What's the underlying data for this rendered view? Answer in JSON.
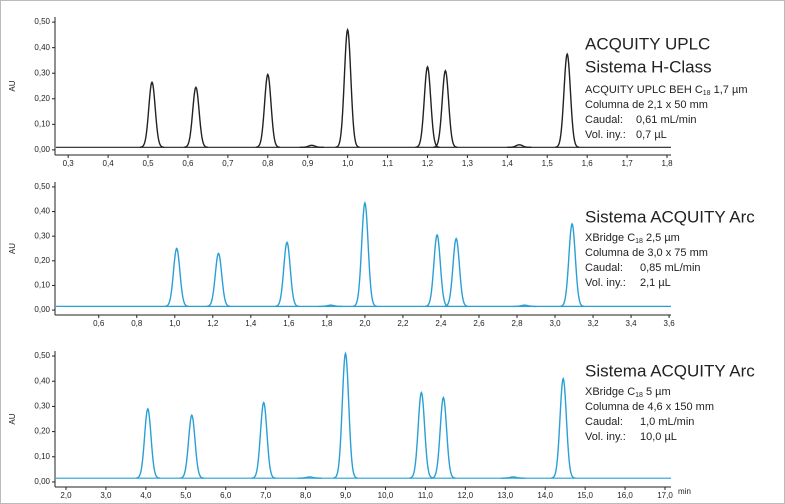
{
  "chart_data": [
    {
      "type": "chromatogram",
      "title": [
        "ACQUITY UPLC",
        "Sistema H-Class"
      ],
      "column": {
        "prefix": "ACQUITY UPLC BEH C",
        "sub": "18",
        "suffix": " 1,7 µm"
      },
      "dimensions": "Columna de 2,1 x 50 mm",
      "flow_label": "Caudal:",
      "flow": "0,61 mL/min",
      "volume_label": "Vol. iny.:",
      "volume": "0,7 µL",
      "y_label": "AU",
      "color": "#222222",
      "x": [
        0.51,
        0.62,
        0.8,
        0.91,
        1.0,
        1.2,
        1.245,
        1.43,
        1.55
      ],
      "values": [
        0.265,
        0.245,
        0.295,
        0.018,
        0.47,
        0.325,
        0.31,
        0.02,
        0.375
      ],
      "baseline": 0.01,
      "xlim": [
        0.267,
        1.81
      ],
      "ylim": [
        -0.02,
        0.52
      ],
      "xticks": [
        {
          "value": 0.3,
          "label": "0,3"
        },
        {
          "value": 0.4,
          "label": "0,4"
        },
        {
          "value": 0.5,
          "label": "0,5"
        },
        {
          "value": 0.6,
          "label": "0,6"
        },
        {
          "value": 0.7,
          "label": "0,7"
        },
        {
          "value": 0.8,
          "label": "0,8"
        },
        {
          "value": 0.9,
          "label": "0,9"
        },
        {
          "value": 1.0,
          "label": "1,0"
        },
        {
          "value": 1.1,
          "label": "1,1"
        },
        {
          "value": 1.2,
          "label": "1,2"
        },
        {
          "value": 1.3,
          "label": "1,3"
        },
        {
          "value": 1.4,
          "label": "1,4"
        },
        {
          "value": 1.5,
          "label": "1,5"
        },
        {
          "value": 1.6,
          "label": "1,6"
        },
        {
          "value": 1.7,
          "label": "1,7"
        },
        {
          "value": 1.8,
          "label": "1,8"
        }
      ],
      "yticks": [
        {
          "value": 0,
          "label": "0,00"
        },
        {
          "value": 0.1,
          "label": "0,10"
        },
        {
          "value": 0.2,
          "label": "0,20"
        },
        {
          "value": 0.3,
          "label": "0,30"
        },
        {
          "value": 0.4,
          "label": "0,40"
        },
        {
          "value": 0.5,
          "label": "0,50"
        }
      ]
    },
    {
      "type": "chromatogram",
      "title": [
        "Sistema ACQUITY Arc"
      ],
      "column": {
        "prefix": "XBridge C",
        "sub": "18",
        "suffix": " 2,5 µm"
      },
      "dimensions": "Columna de 3,0 x 75 mm",
      "flow_label": "Caudal:",
      "flow": "0,85 mL/min",
      "volume_label": "Vol. iny.:",
      "volume": "2,1 µL",
      "y_label": "AU",
      "color": "#2a9fd6",
      "x": [
        1.01,
        1.23,
        1.59,
        1.82,
        2.0,
        2.38,
        2.48,
        2.84,
        3.09
      ],
      "values": [
        0.25,
        0.23,
        0.275,
        0.02,
        0.435,
        0.305,
        0.29,
        0.02,
        0.35
      ],
      "baseline": 0.015,
      "xlim": [
        0.37,
        3.61
      ],
      "ylim": [
        -0.02,
        0.52
      ],
      "xticks": [
        {
          "value": 0.6,
          "label": "0,6"
        },
        {
          "value": 0.8,
          "label": "0,8"
        },
        {
          "value": 1.0,
          "label": "1,0"
        },
        {
          "value": 1.2,
          "label": "1,2"
        },
        {
          "value": 1.4,
          "label": "1,4"
        },
        {
          "value": 1.6,
          "label": "1,6"
        },
        {
          "value": 1.8,
          "label": "1,8"
        },
        {
          "value": 2.0,
          "label": "2,0"
        },
        {
          "value": 2.2,
          "label": "2,2"
        },
        {
          "value": 2.4,
          "label": "2,4"
        },
        {
          "value": 2.6,
          "label": "2,6"
        },
        {
          "value": 2.8,
          "label": "2,8"
        },
        {
          "value": 3.0,
          "label": "3,0"
        },
        {
          "value": 3.2,
          "label": "3,2"
        },
        {
          "value": 3.4,
          "label": "3,4"
        },
        {
          "value": 3.6,
          "label": "3,6"
        }
      ],
      "yticks": [
        {
          "value": 0,
          "label": "0,00"
        },
        {
          "value": 0.1,
          "label": "0,10"
        },
        {
          "value": 0.2,
          "label": "0,20"
        },
        {
          "value": 0.3,
          "label": "0,30"
        },
        {
          "value": 0.4,
          "label": "0,40"
        },
        {
          "value": 0.5,
          "label": "0,50"
        }
      ]
    },
    {
      "type": "chromatogram",
      "title": [
        "Sistema ACQUITY Arc"
      ],
      "column": {
        "prefix": "XBridge C",
        "sub": "18",
        "suffix": " 5 µm"
      },
      "dimensions": "Columna de 4,6 x 150 mm",
      "flow_label": "Caudal:",
      "flow": "1,0 mL/min",
      "volume_label": "Vol. iny.:",
      "volume": "10,0 µL",
      "y_label": "AU",
      "x_label": "min",
      "color": "#2a9fd6",
      "x": [
        4.05,
        5.15,
        6.95,
        8.1,
        9.0,
        10.9,
        11.45,
        13.2,
        14.45
      ],
      "values": [
        0.29,
        0.265,
        0.315,
        0.02,
        0.51,
        0.355,
        0.335,
        0.02,
        0.41
      ],
      "baseline": 0.015,
      "xlim": [
        1.725,
        17.15
      ],
      "ylim": [
        -0.02,
        0.52
      ],
      "xticks": [
        {
          "value": 2,
          "label": "2,0"
        },
        {
          "value": 3,
          "label": "3,0"
        },
        {
          "value": 4,
          "label": "4,0"
        },
        {
          "value": 5,
          "label": "5,0"
        },
        {
          "value": 6,
          "label": "6,0"
        },
        {
          "value": 7,
          "label": "7,0"
        },
        {
          "value": 8,
          "label": "8,0"
        },
        {
          "value": 9,
          "label": "9,0"
        },
        {
          "value": 10,
          "label": "10,0"
        },
        {
          "value": 11,
          "label": "11,0"
        },
        {
          "value": 12,
          "label": "12,0"
        },
        {
          "value": 13,
          "label": "13,0"
        },
        {
          "value": 14,
          "label": "14,0"
        },
        {
          "value": 15,
          "label": "15,0"
        },
        {
          "value": 16,
          "label": "16,0"
        },
        {
          "value": 17,
          "label": "17,0"
        }
      ],
      "yticks": [
        {
          "value": 0,
          "label": "0,00"
        },
        {
          "value": 0.1,
          "label": "0,10"
        },
        {
          "value": 0.2,
          "label": "0,20"
        },
        {
          "value": 0.3,
          "label": "0,30"
        },
        {
          "value": 0.4,
          "label": "0,40"
        },
        {
          "value": 0.5,
          "label": "0,50"
        }
      ]
    }
  ]
}
